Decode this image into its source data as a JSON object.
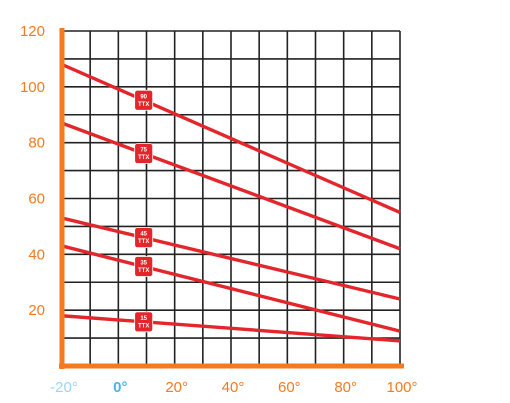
{
  "chart_data": {
    "type": "line",
    "title": "",
    "xlabel": "",
    "ylabel": "",
    "xlim": [
      -20,
      100
    ],
    "ylim": [
      0,
      120
    ],
    "grid": true,
    "y_ticks": [
      {
        "value": 20,
        "label": "20"
      },
      {
        "value": 40,
        "label": "40"
      },
      {
        "value": 60,
        "label": "60"
      },
      {
        "value": 80,
        "label": "80"
      },
      {
        "value": 100,
        "label": "100"
      },
      {
        "value": 120,
        "label": "120"
      }
    ],
    "x_ticks": [
      {
        "value": -20,
        "label": "-20°",
        "style": "faded"
      },
      {
        "value": 0,
        "label": "0°",
        "style": "emphasis"
      },
      {
        "value": 20,
        "label": "20°",
        "style": "normal"
      },
      {
        "value": 40,
        "label": "40°",
        "style": "normal"
      },
      {
        "value": 60,
        "label": "60°",
        "style": "normal"
      },
      {
        "value": 80,
        "label": "80°",
        "style": "normal"
      },
      {
        "value": 100,
        "label": "100°",
        "style": "normal"
      }
    ],
    "series": [
      {
        "badge_top": "90",
        "badge_bottom": "TTX",
        "x": [
          -20,
          100
        ],
        "y": [
          108,
          55
        ]
      },
      {
        "badge_top": "75",
        "badge_bottom": "TTX",
        "x": [
          -20,
          100
        ],
        "y": [
          87,
          42
        ]
      },
      {
        "badge_top": "45",
        "badge_bottom": "TTX",
        "x": [
          -20,
          100
        ],
        "y": [
          53,
          24
        ]
      },
      {
        "badge_top": "35",
        "badge_bottom": "TTX",
        "x": [
          -20,
          100
        ],
        "y": [
          43,
          12.5
        ]
      },
      {
        "badge_top": "15",
        "badge_bottom": "TTX",
        "x": [
          -20,
          100
        ],
        "y": [
          18,
          9
        ]
      }
    ],
    "badge_x": 9,
    "colors": {
      "axis": "#f47a20",
      "grid": "#222222",
      "line": "#e3262b",
      "tick_label": "#f47a20",
      "tick_faded": "#9dd3f2",
      "tick_emphasis": "#4cb3ee"
    }
  }
}
